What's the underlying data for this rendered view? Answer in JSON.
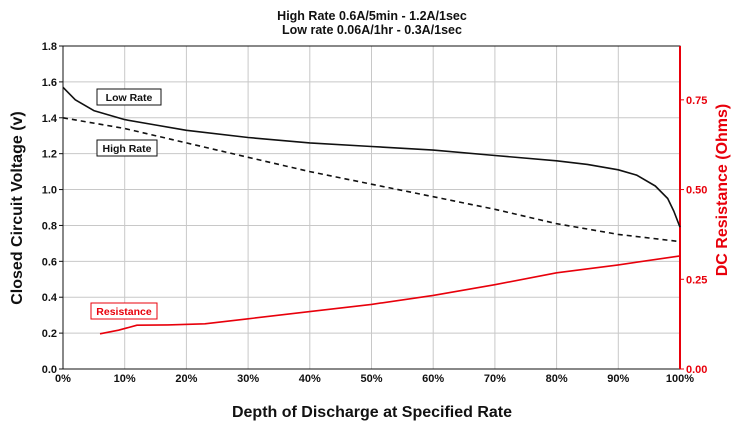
{
  "chart_data": {
    "type": "line",
    "title": [
      "High Rate 0.6A/5min - 1.2A/1sec",
      "Low rate 0.06A/1hr - 0.3A/1sec"
    ],
    "xlabel": "Depth of Discharge at Specified Rate",
    "ylabel": "Closed Circuit Voltage (v)",
    "y2label": "DC Resistance (Ohms)",
    "xlim": [
      0,
      100
    ],
    "ylim": [
      0,
      1.8
    ],
    "y2lim": [
      0,
      0.9
    ],
    "x_ticks": [
      "0%",
      "10%",
      "20%",
      "30%",
      "40%",
      "50%",
      "60%",
      "70%",
      "80%",
      "90%",
      "100%"
    ],
    "y_ticks": [
      "0.0",
      "0.2",
      "0.4",
      "0.6",
      "0.8",
      "1.0",
      "1.2",
      "1.4",
      "1.6",
      "1.8"
    ],
    "y2_ticks": [
      "0.00",
      "0.25",
      "0.50",
      "0.75"
    ],
    "grid": true,
    "series": [
      {
        "name": "Low Rate",
        "axis": "left",
        "color": "#111111",
        "style": "solid",
        "x": [
          0,
          2,
          5,
          10,
          15,
          20,
          30,
          40,
          50,
          60,
          70,
          80,
          85,
          90,
          93,
          96,
          98,
          99,
          100
        ],
        "y": [
          1.57,
          1.5,
          1.44,
          1.39,
          1.36,
          1.33,
          1.29,
          1.26,
          1.24,
          1.22,
          1.19,
          1.16,
          1.14,
          1.11,
          1.08,
          1.02,
          0.95,
          0.88,
          0.79
        ]
      },
      {
        "name": "High Rate",
        "axis": "left",
        "color": "#111111",
        "style": "dashed",
        "x": [
          0,
          10,
          20,
          30,
          40,
          50,
          60,
          70,
          80,
          90,
          95,
          100
        ],
        "y": [
          1.4,
          1.34,
          1.26,
          1.18,
          1.1,
          1.03,
          0.96,
          0.89,
          0.81,
          0.75,
          0.73,
          0.71
        ]
      },
      {
        "name": "Resistance",
        "axis": "right",
        "color": "#e8000b",
        "style": "solid",
        "x": [
          6,
          9,
          12,
          17,
          23,
          30,
          40,
          50,
          60,
          70,
          80,
          90,
          100
        ],
        "y": [
          0.098,
          0.108,
          0.122,
          0.123,
          0.126,
          0.14,
          0.16,
          0.18,
          0.205,
          0.235,
          0.268,
          0.29,
          0.315
        ]
      }
    ]
  }
}
